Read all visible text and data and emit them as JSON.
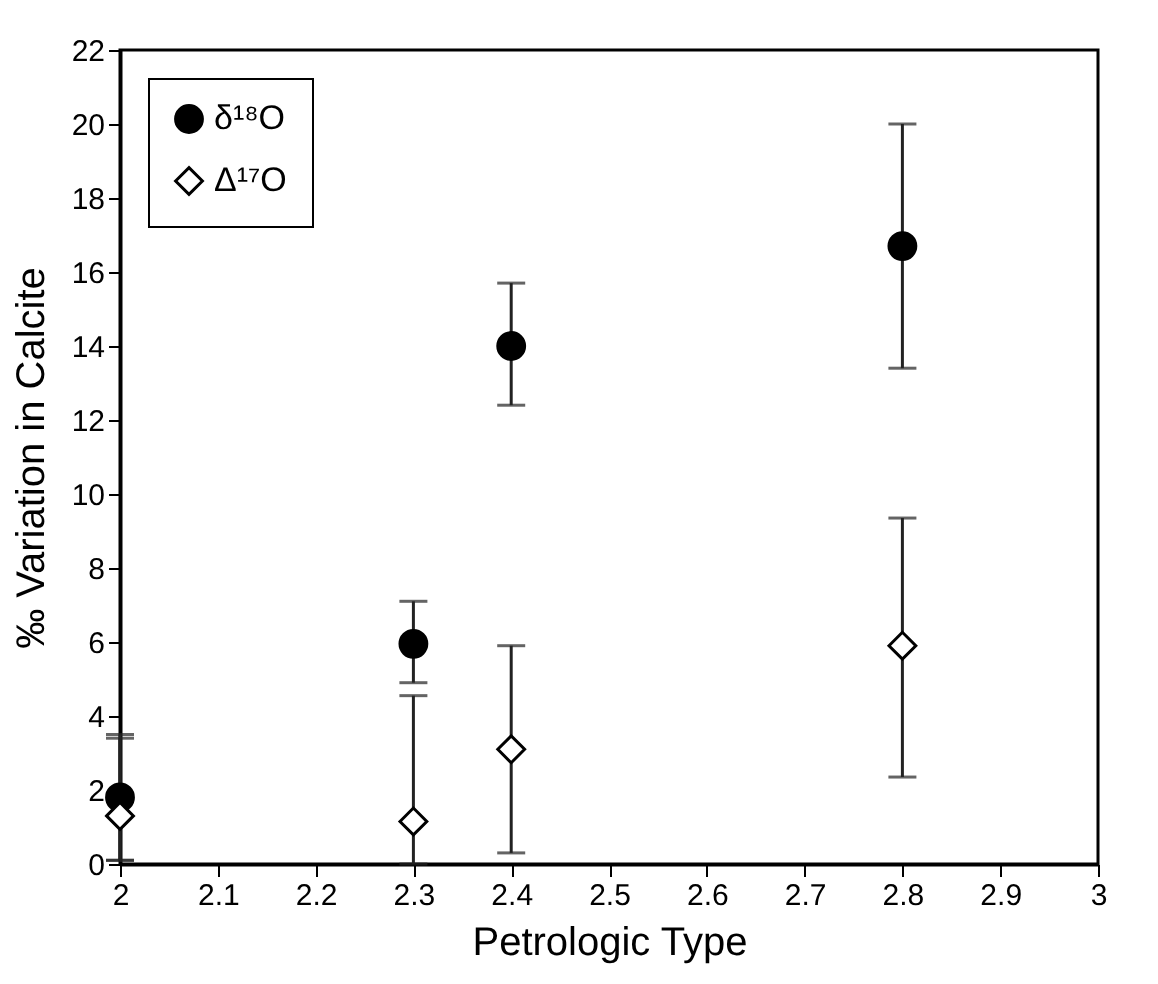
{
  "chart_data": {
    "type": "scatter",
    "xlabel": "Petrologic Type",
    "ylabel": "‰ Variation in Calcite",
    "x": [
      2,
      2.3,
      2.4,
      2.8
    ],
    "series": [
      {
        "name": "δ¹⁸O",
        "color": "#000000",
        "marker": "circle",
        "values": [
          1.8,
          5.95,
          14.0,
          16.7
        ],
        "errors": [
          [
            0.1,
            3.5
          ],
          [
            4.9,
            7.1
          ],
          [
            12.4,
            15.7
          ],
          [
            13.4,
            20.0
          ]
        ]
      },
      {
        "name": "Δ¹⁷O",
        "color": "#ffffff",
        "marker": "diamond",
        "values": [
          1.3,
          1.15,
          3.1,
          5.9
        ],
        "errors": [
          [
            0.1,
            3.4
          ],
          [
            0,
            4.55
          ],
          [
            0.3,
            5.9
          ],
          [
            2.35,
            9.35
          ]
        ]
      }
    ],
    "xlim": [
      2,
      3
    ],
    "xticks": [
      2,
      2.1,
      2.2,
      2.3,
      2.4,
      2.5,
      2.6,
      2.7,
      2.8,
      2.9,
      3
    ],
    "ylim": [
      0,
      22
    ],
    "yticks": [
      0,
      2,
      4,
      6,
      8,
      10,
      12,
      14,
      16,
      18,
      20,
      22
    ],
    "grid": false,
    "legend": "top left"
  }
}
